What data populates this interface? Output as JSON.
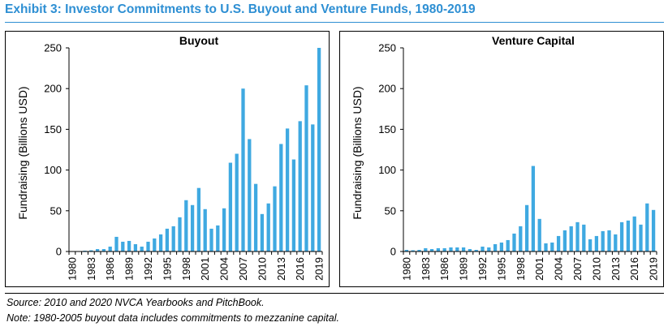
{
  "exhibit_title": "Exhibit 3: Investor Commitments to U.S. Buyout and Venture Funds, 1980-2019",
  "footnotes": {
    "source": "Source: 2010 and 2020 NVCA Yearbooks and PitchBook.",
    "note": "Note: 1980-2005 buyout data includes commitments to mezzanine capital."
  },
  "colors": {
    "title": "#2E8FD3",
    "bar": "#3FA9E1",
    "axis": "#000000"
  },
  "chart_data": [
    {
      "type": "bar",
      "title": "Buyout",
      "ylabel": "Fundraising (Billions USD)",
      "xlabel": "",
      "ylim": [
        0,
        250
      ],
      "yticks": [
        0,
        50,
        100,
        150,
        200,
        250
      ],
      "x_tick_labels": [
        "1980",
        "1983",
        "1986",
        "1989",
        "1992",
        "1995",
        "1998",
        "2001",
        "2004",
        "2007",
        "2010",
        "2013",
        "2016",
        "2019"
      ],
      "grid": false,
      "categories": [
        "1980",
        "1981",
        "1982",
        "1983",
        "1984",
        "1985",
        "1986",
        "1987",
        "1988",
        "1989",
        "1990",
        "1991",
        "1992",
        "1993",
        "1994",
        "1995",
        "1996",
        "1997",
        "1998",
        "1999",
        "2000",
        "2001",
        "2002",
        "2003",
        "2004",
        "2005",
        "2006",
        "2007",
        "2008",
        "2009",
        "2010",
        "2011",
        "2012",
        "2013",
        "2014",
        "2015",
        "2016",
        "2017",
        "2018",
        "2019"
      ],
      "values": [
        0.5,
        0.5,
        1,
        1.5,
        3,
        3,
        6,
        18,
        12,
        13,
        9,
        6,
        12,
        16,
        21,
        28,
        31,
        42,
        63,
        57,
        78,
        52,
        28,
        32,
        53,
        109,
        120,
        200,
        138,
        83,
        46,
        59,
        80,
        132,
        151,
        113,
        160,
        204,
        156,
        250
      ]
    },
    {
      "type": "bar",
      "title": "Venture Capital",
      "ylabel": "Fundraising (Billions USD)",
      "xlabel": "",
      "ylim": [
        0,
        250
      ],
      "yticks": [
        0,
        50,
        100,
        150,
        200,
        250
      ],
      "x_tick_labels": [
        "1980",
        "1983",
        "1986",
        "1989",
        "1992",
        "1995",
        "1998",
        "2001",
        "2004",
        "2007",
        "2010",
        "2013",
        "2016",
        "2019"
      ],
      "grid": false,
      "categories": [
        "1980",
        "1981",
        "1982",
        "1983",
        "1984",
        "1985",
        "1986",
        "1987",
        "1988",
        "1989",
        "1990",
        "1991",
        "1992",
        "1993",
        "1994",
        "1995",
        "1996",
        "1997",
        "1998",
        "1999",
        "2000",
        "2001",
        "2002",
        "2003",
        "2004",
        "2005",
        "2006",
        "2007",
        "2008",
        "2009",
        "2010",
        "2011",
        "2012",
        "2013",
        "2014",
        "2015",
        "2016",
        "2017",
        "2018",
        "2019"
      ],
      "values": [
        2,
        1.5,
        2,
        4,
        3,
        4,
        4,
        5,
        5,
        5,
        3,
        2,
        6,
        5,
        9,
        11,
        14,
        22,
        31,
        57,
        105,
        40,
        10,
        11,
        19,
        26,
        31,
        36,
        33,
        15,
        19,
        25,
        26,
        21,
        36,
        38,
        43,
        33,
        59,
        51
      ]
    }
  ]
}
